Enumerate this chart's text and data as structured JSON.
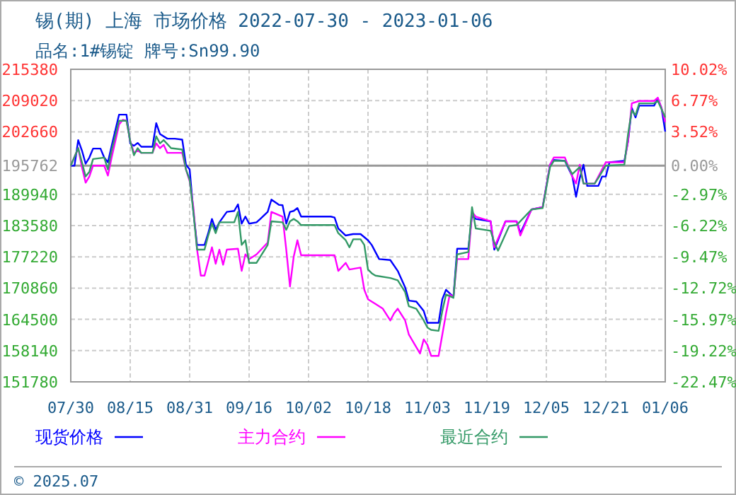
{
  "chart_data": {
    "type": "line",
    "title": "锡(期) 上海 市场价格 2022-07-30 - 2023-01-06",
    "subtitle": "品名:1#锡锭 牌号:Sn99.90",
    "annotations": [
      "© 2025.07"
    ],
    "xlim": [
      "2022-07-30",
      "2023-01-06"
    ],
    "xticks": [
      {
        "value": "2022-07-30",
        "label": "07/30"
      },
      {
        "value": "2022-08-15",
        "label": "08/15"
      },
      {
        "value": "2022-08-31",
        "label": "08/31"
      },
      {
        "value": "2022-09-16",
        "label": "09/16"
      },
      {
        "value": "2022-10-02",
        "label": "10/02"
      },
      {
        "value": "2022-10-18",
        "label": "10/18"
      },
      {
        "value": "2022-11-03",
        "label": "11/03"
      },
      {
        "value": "2022-11-19",
        "label": "11/19"
      },
      {
        "value": "2022-12-05",
        "label": "12/05"
      },
      {
        "value": "2022-12-21",
        "label": "12/21"
      },
      {
        "value": "2023-01-06",
        "label": "01/06"
      }
    ],
    "ylim": [
      151780,
      215380
    ],
    "yticks": [
      151780,
      158140,
      164500,
      170860,
      177220,
      183580,
      189940,
      195762,
      202660,
      209020,
      215380
    ],
    "y2lim": [
      -22.47,
      10.02
    ],
    "y2ticks": [
      {
        "value": -22.47,
        "label": "-22.47%"
      },
      {
        "value": -19.22,
        "label": "-19.22%"
      },
      {
        "value": -15.97,
        "label": "-15.97%"
      },
      {
        "value": -12.72,
        "label": "-12.72%"
      },
      {
        "value": -9.47,
        "label": "-9.47%"
      },
      {
        "value": -6.22,
        "label": "-6.22%"
      },
      {
        "value": -2.97,
        "label": "-2.97%"
      },
      {
        "value": 0,
        "label": "0.00%"
      },
      {
        "value": 3.52,
        "label": "3.52%"
      },
      {
        "value": 6.77,
        "label": "6.77%"
      },
      {
        "value": 10.02,
        "label": "10.02%"
      }
    ],
    "ref_lines": [
      {
        "axis": "y",
        "value": 195762,
        "color": "#999999"
      }
    ],
    "grid": true,
    "legend": "bottom",
    "marker": "none",
    "line_style": "solid",
    "series": [
      {
        "name": "现货价格",
        "color": "#0000ff",
        "x": [
          "2022-07-30",
          "2022-07-31",
          "2022-08-01",
          "2022-08-02",
          "2022-08-03",
          "2022-08-04",
          "2022-08-05",
          "2022-08-07",
          "2022-08-08",
          "2022-08-09",
          "2022-08-10",
          "2022-08-12",
          "2022-08-14",
          "2022-08-15",
          "2022-08-16",
          "2022-08-17",
          "2022-08-18",
          "2022-08-21",
          "2022-08-22",
          "2022-08-23",
          "2022-08-25",
          "2022-08-27",
          "2022-08-29",
          "2022-08-30",
          "2022-08-31",
          "2022-09-01",
          "2022-09-02",
          "2022-09-04",
          "2022-09-05",
          "2022-09-06",
          "2022-09-07",
          "2022-09-08",
          "2022-09-10",
          "2022-09-12",
          "2022-09-13",
          "2022-09-14",
          "2022-09-15",
          "2022-09-16",
          "2022-09-18",
          "2022-09-19",
          "2022-09-21",
          "2022-09-22",
          "2022-09-24",
          "2022-09-25",
          "2022-09-26",
          "2022-09-27",
          "2022-09-28",
          "2022-09-29",
          "2022-09-30",
          "2022-10-08",
          "2022-10-09",
          "2022-10-10",
          "2022-10-12",
          "2022-10-14",
          "2022-10-16",
          "2022-10-18",
          "2022-10-19",
          "2022-10-21",
          "2022-10-24",
          "2022-10-26",
          "2022-10-28",
          "2022-10-29",
          "2022-10-31",
          "2022-11-02",
          "2022-11-03",
          "2022-11-06",
          "2022-11-07",
          "2022-11-08",
          "2022-11-10",
          "2022-11-11",
          "2022-11-14",
          "2022-11-15",
          "2022-11-16",
          "2022-11-20",
          "2022-11-21",
          "2022-11-24",
          "2022-11-27",
          "2022-11-28",
          "2022-12-01",
          "2022-12-04",
          "2022-12-06",
          "2022-12-07",
          "2022-12-10",
          "2022-12-12",
          "2022-12-13",
          "2022-12-14",
          "2022-12-15",
          "2022-12-16",
          "2022-12-19",
          "2022-12-20",
          "2022-12-21",
          "2022-12-22",
          "2022-12-26",
          "2022-12-27",
          "2022-12-28",
          "2022-12-29",
          "2022-12-30",
          "2023-01-03",
          "2023-01-04",
          "2023-01-05",
          "2023-01-06"
        ],
        "values": [
          195762,
          195762,
          200970,
          198860,
          196170,
          197420,
          199240,
          199240,
          197420,
          196450,
          199820,
          206160,
          206160,
          200300,
          199820,
          200390,
          199620,
          199620,
          204430,
          202220,
          201260,
          201260,
          201070,
          195970,
          195010,
          186370,
          179640,
          179640,
          182040,
          184930,
          182720,
          184250,
          186370,
          186560,
          187900,
          183970,
          185410,
          183970,
          184250,
          184930,
          186370,
          188870,
          187810,
          187710,
          183970,
          186370,
          186560,
          187140,
          185410,
          185410,
          185210,
          183000,
          181560,
          181850,
          181850,
          180600,
          179640,
          176760,
          176570,
          174360,
          171000,
          168310,
          168120,
          166190,
          163790,
          163790,
          168590,
          170520,
          169070,
          178870,
          178870,
          185600,
          184930,
          184450,
          178680,
          184450,
          184450,
          182040,
          186850,
          187330,
          195970,
          196940,
          196740,
          193570,
          189440,
          193280,
          195970,
          191650,
          191650,
          193570,
          193570,
          196450,
          196740,
          200780,
          207500,
          205580,
          207980,
          207980,
          209420,
          207500,
          202700
        ]
      },
      {
        "name": "主力合约",
        "color": "#ff00ff",
        "x": [
          "2022-07-30",
          "2022-08-01",
          "2022-08-02",
          "2022-08-03",
          "2022-08-04",
          "2022-08-05",
          "2022-08-08",
          "2022-08-09",
          "2022-08-10",
          "2022-08-12",
          "2022-08-13",
          "2022-08-14",
          "2022-08-15",
          "2022-08-16",
          "2022-08-17",
          "2022-08-18",
          "2022-08-21",
          "2022-08-22",
          "2022-08-23",
          "2022-08-24",
          "2022-08-25",
          "2022-08-29",
          "2022-08-30",
          "2022-08-31",
          "2022-09-01",
          "2022-09-02",
          "2022-09-03",
          "2022-09-04",
          "2022-09-06",
          "2022-09-07",
          "2022-09-08",
          "2022-09-09",
          "2022-09-10",
          "2022-09-13",
          "2022-09-14",
          "2022-09-15",
          "2022-09-16",
          "2022-09-18",
          "2022-09-21",
          "2022-09-22",
          "2022-09-25",
          "2022-09-26",
          "2022-09-27",
          "2022-09-28",
          "2022-09-29",
          "2022-09-30",
          "2022-10-09",
          "2022-10-10",
          "2022-10-12",
          "2022-10-13",
          "2022-10-16",
          "2022-10-17",
          "2022-10-18",
          "2022-10-20",
          "2022-10-22",
          "2022-10-24",
          "2022-10-25",
          "2022-10-26",
          "2022-10-28",
          "2022-10-29",
          "2022-11-01",
          "2022-11-02",
          "2022-11-03",
          "2022-11-04",
          "2022-11-06",
          "2022-11-07",
          "2022-11-08",
          "2022-11-09",
          "2022-11-10",
          "2022-11-11",
          "2022-11-14",
          "2022-11-15",
          "2022-11-16",
          "2022-11-20",
          "2022-11-21",
          "2022-11-24",
          "2022-11-27",
          "2022-11-28",
          "2022-12-01",
          "2022-12-04",
          "2022-12-06",
          "2022-12-07",
          "2022-12-10",
          "2022-12-12",
          "2022-12-13",
          "2022-12-14",
          "2022-12-15",
          "2022-12-18",
          "2022-12-19",
          "2022-12-21",
          "2022-12-26",
          "2022-12-27",
          "2022-12-28",
          "2022-12-30",
          "2023-01-03",
          "2023-01-04",
          "2023-01-05",
          "2023-01-06"
        ],
        "values": [
          195762,
          199340,
          195490,
          192320,
          193570,
          195780,
          195780,
          193760,
          197420,
          204140,
          205100,
          204910,
          200780,
          198380,
          198860,
          198380,
          198380,
          200300,
          199340,
          200010,
          198380,
          198380,
          195010,
          192610,
          187330,
          178680,
          173400,
          173400,
          179160,
          175800,
          178680,
          175610,
          178680,
          178870,
          174360,
          177720,
          176760,
          177720,
          180120,
          186370,
          185410,
          178680,
          171190,
          177240,
          180600,
          177530,
          177530,
          174360,
          175990,
          174650,
          175030,
          170520,
          168590,
          167630,
          166670,
          164270,
          165710,
          166670,
          164270,
          161390,
          157550,
          160430,
          159270,
          157070,
          157070,
          161390,
          165710,
          169560,
          169070,
          176760,
          176760,
          186370,
          185410,
          184450,
          179160,
          184450,
          184450,
          181560,
          186850,
          187330,
          195970,
          197420,
          197420,
          193570,
          192130,
          195970,
          192130,
          192130,
          193570,
          196450,
          196450,
          200780,
          208460,
          208940,
          208940,
          209620,
          207500,
          204620
        ]
      },
      {
        "name": "最近合约",
        "color": "#339966",
        "x": [
          "2022-07-30",
          "2022-08-01",
          "2022-08-02",
          "2022-08-03",
          "2022-08-04",
          "2022-08-05",
          "2022-08-08",
          "2022-08-09",
          "2022-08-10",
          "2022-08-12",
          "2022-08-14",
          "2022-08-15",
          "2022-08-16",
          "2022-08-17",
          "2022-08-18",
          "2022-08-21",
          "2022-08-22",
          "2022-08-23",
          "2022-08-24",
          "2022-08-26",
          "2022-08-29",
          "2022-08-30",
          "2022-08-31",
          "2022-09-01",
          "2022-09-02",
          "2022-09-04",
          "2022-09-05",
          "2022-09-06",
          "2022-09-07",
          "2022-09-08",
          "2022-09-12",
          "2022-09-13",
          "2022-09-14",
          "2022-09-15",
          "2022-09-16",
          "2022-09-18",
          "2022-09-21",
          "2022-09-22",
          "2022-09-25",
          "2022-09-26",
          "2022-09-27",
          "2022-09-28",
          "2022-09-29",
          "2022-09-30",
          "2022-10-09",
          "2022-10-10",
          "2022-10-12",
          "2022-10-13",
          "2022-10-14",
          "2022-10-16",
          "2022-10-17",
          "2022-10-18",
          "2022-10-19",
          "2022-10-20",
          "2022-10-24",
          "2022-10-26",
          "2022-10-28",
          "2022-10-29",
          "2022-10-31",
          "2022-11-02",
          "2022-11-03",
          "2022-11-04",
          "2022-11-06",
          "2022-11-07",
          "2022-11-08",
          "2022-11-10",
          "2022-11-11",
          "2022-11-14",
          "2022-11-15",
          "2022-11-16",
          "2022-11-20",
          "2022-11-21",
          "2022-11-22",
          "2022-11-25",
          "2022-11-27",
          "2022-12-01",
          "2022-12-04",
          "2022-12-06",
          "2022-12-07",
          "2022-12-10",
          "2022-12-12",
          "2022-12-14",
          "2022-12-15",
          "2022-12-18",
          "2022-12-19",
          "2022-12-21",
          "2022-12-26",
          "2022-12-27",
          "2022-12-28",
          "2022-12-29",
          "2022-12-30",
          "2023-01-03",
          "2023-01-04",
          "2023-01-06"
        ],
        "values": [
          195762,
          199340,
          196450,
          193570,
          194530,
          197130,
          197420,
          195010,
          198860,
          204910,
          204910,
          200780,
          197900,
          199340,
          198380,
          198380,
          201740,
          200300,
          200970,
          199340,
          199050,
          195010,
          192900,
          186370,
          178680,
          178680,
          181560,
          183970,
          182040,
          184250,
          184250,
          186370,
          179640,
          180600,
          175990,
          175990,
          179640,
          184450,
          184250,
          182720,
          184450,
          184930,
          184450,
          183680,
          183680,
          182040,
          180600,
          179160,
          180790,
          180790,
          179640,
          174650,
          173880,
          173400,
          172920,
          172440,
          170040,
          167150,
          166670,
          164270,
          162830,
          162350,
          162160,
          166190,
          169560,
          168880,
          177720,
          178200,
          187330,
          183000,
          182520,
          180120,
          178490,
          183490,
          183680,
          186850,
          187140,
          195490,
          196740,
          196740,
          194050,
          195490,
          192130,
          192130,
          193280,
          195780,
          195970,
          202220,
          207020,
          206060,
          208460,
          208460,
          208940,
          205580
        ]
      }
    ]
  }
}
